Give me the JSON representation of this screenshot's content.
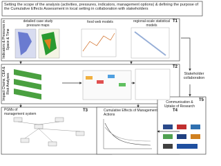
{
  "header": {
    "text": "Setting the scope of the analysis (activities, pressures, indicators, management options) & defining the purpose of the Cumulative Effects Assessment in local setting in collaboration with stakeholders"
  },
  "t1": {
    "tag": "T1",
    "side": "Indicators & Pressures in Space & Time",
    "labels": [
      "detailed case study pressure maps",
      "food web models",
      "regional-scale statistical models"
    ]
  },
  "t2": {
    "tag": "T2",
    "side": "Impact Chains, CEA & Risk Analyses"
  },
  "stakeholder": "Stakeholder collaboration",
  "t3": {
    "tag": "T3",
    "label": "PGMs of management system"
  },
  "t4": {
    "tag": "T4",
    "label": "Cumulative Effects of Management Actions"
  },
  "t5": {
    "tag": "T5",
    "label": "Communication & Uptake of Research"
  }
}
